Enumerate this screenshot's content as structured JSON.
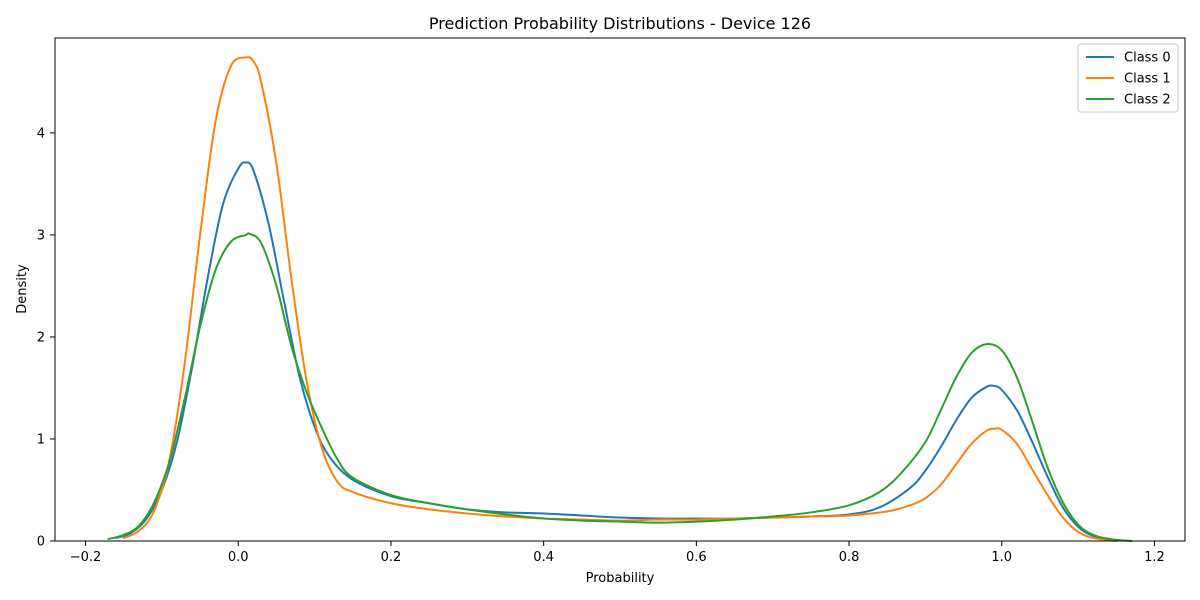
{
  "chart_data": {
    "type": "line",
    "title": "Prediction Probability Distributions - Device 126",
    "xlabel": "Probability",
    "ylabel": "Density",
    "xlim": [
      -0.24,
      1.24
    ],
    "ylim": [
      0,
      4.93
    ],
    "xticks": [
      -0.2,
      0.0,
      0.2,
      0.4,
      0.6,
      0.8,
      1.0,
      1.2
    ],
    "xtick_labels": [
      "−0.2",
      "0.0",
      "0.2",
      "0.4",
      "0.6",
      "0.8",
      "1.0",
      "1.2"
    ],
    "yticks": [
      0,
      1,
      2,
      3,
      4
    ],
    "ytick_labels": [
      "0",
      "1",
      "2",
      "3",
      "4"
    ],
    "grid": false,
    "legend": "top-right",
    "series": [
      {
        "name": "Class 0",
        "color": "#1f77b4",
        "x": [
          -0.16,
          -0.14,
          -0.12,
          -0.1,
          -0.08,
          -0.06,
          -0.04,
          -0.02,
          0.0,
          0.01,
          0.02,
          0.04,
          0.06,
          0.08,
          0.1,
          0.12,
          0.15,
          0.2,
          0.25,
          0.3,
          0.35,
          0.4,
          0.45,
          0.5,
          0.55,
          0.6,
          0.65,
          0.7,
          0.75,
          0.8,
          0.84,
          0.88,
          0.9,
          0.92,
          0.94,
          0.96,
          0.98,
          0.99,
          1.0,
          1.02,
          1.04,
          1.06,
          1.08,
          1.1,
          1.12,
          1.15
        ],
        "y": [
          0.03,
          0.08,
          0.22,
          0.5,
          0.98,
          1.72,
          2.58,
          3.3,
          3.65,
          3.71,
          3.63,
          3.1,
          2.35,
          1.62,
          1.12,
          0.82,
          0.6,
          0.44,
          0.37,
          0.31,
          0.28,
          0.27,
          0.25,
          0.23,
          0.22,
          0.22,
          0.22,
          0.23,
          0.24,
          0.26,
          0.33,
          0.52,
          0.69,
          0.92,
          1.18,
          1.4,
          1.51,
          1.52,
          1.48,
          1.28,
          0.97,
          0.63,
          0.33,
          0.14,
          0.05,
          0.01
        ]
      },
      {
        "name": "Class 1",
        "color": "#ff7f0e",
        "x": [
          -0.15,
          -0.13,
          -0.11,
          -0.09,
          -0.07,
          -0.05,
          -0.03,
          -0.01,
          0.01,
          0.02,
          0.03,
          0.05,
          0.07,
          0.09,
          0.11,
          0.13,
          0.15,
          0.2,
          0.25,
          0.3,
          0.35,
          0.4,
          0.45,
          0.5,
          0.55,
          0.6,
          0.65,
          0.7,
          0.75,
          0.8,
          0.85,
          0.88,
          0.9,
          0.92,
          0.94,
          0.96,
          0.98,
          0.99,
          1.0,
          1.02,
          1.04,
          1.06,
          1.08,
          1.1,
          1.12,
          1.15
        ],
        "y": [
          0.03,
          0.1,
          0.3,
          0.8,
          1.75,
          3.0,
          4.1,
          4.65,
          4.74,
          4.7,
          4.5,
          3.7,
          2.55,
          1.55,
          0.9,
          0.58,
          0.48,
          0.37,
          0.31,
          0.27,
          0.24,
          0.22,
          0.21,
          0.2,
          0.21,
          0.21,
          0.22,
          0.23,
          0.24,
          0.25,
          0.29,
          0.35,
          0.42,
          0.55,
          0.75,
          0.95,
          1.08,
          1.1,
          1.09,
          0.95,
          0.7,
          0.45,
          0.23,
          0.09,
          0.03,
          0.0
        ]
      },
      {
        "name": "Class 2",
        "color": "#2ca02c",
        "x": [
          -0.17,
          -0.15,
          -0.13,
          -0.11,
          -0.09,
          -0.07,
          -0.05,
          -0.03,
          -0.01,
          0.01,
          0.015,
          0.03,
          0.05,
          0.07,
          0.09,
          0.11,
          0.13,
          0.15,
          0.2,
          0.25,
          0.3,
          0.35,
          0.4,
          0.45,
          0.5,
          0.55,
          0.6,
          0.65,
          0.7,
          0.75,
          0.8,
          0.84,
          0.87,
          0.9,
          0.92,
          0.94,
          0.96,
          0.98,
          1.0,
          1.02,
          1.04,
          1.06,
          1.08,
          1.1,
          1.12,
          1.14,
          1.17
        ],
        "y": [
          0.02,
          0.06,
          0.15,
          0.38,
          0.78,
          1.4,
          2.1,
          2.65,
          2.93,
          3.0,
          3.01,
          2.92,
          2.5,
          1.9,
          1.45,
          1.1,
          0.8,
          0.62,
          0.45,
          0.37,
          0.31,
          0.26,
          0.22,
          0.2,
          0.19,
          0.18,
          0.19,
          0.21,
          0.24,
          0.28,
          0.35,
          0.48,
          0.68,
          0.97,
          1.28,
          1.6,
          1.84,
          1.93,
          1.87,
          1.6,
          1.17,
          0.72,
          0.38,
          0.16,
          0.06,
          0.02,
          0.0
        ]
      }
    ]
  }
}
